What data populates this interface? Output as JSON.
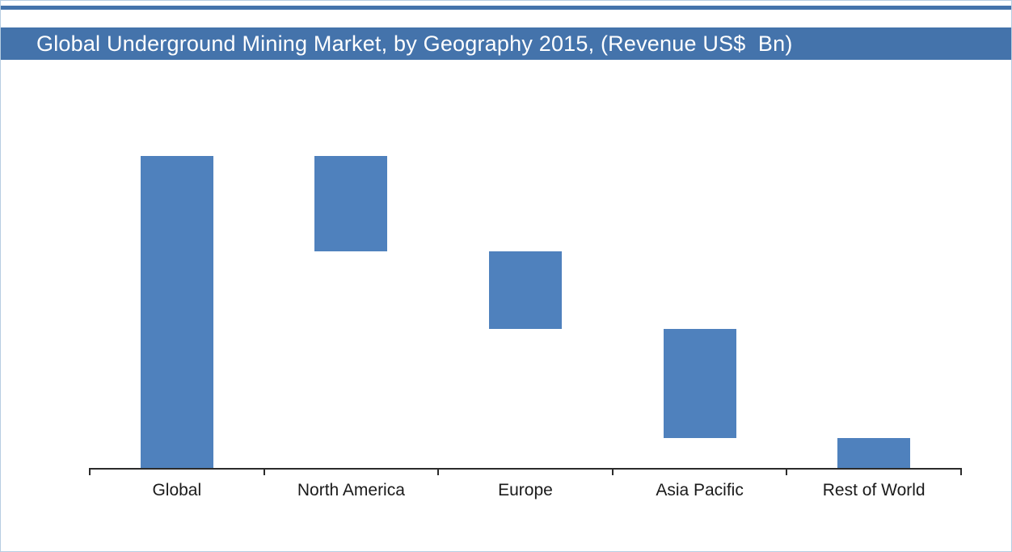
{
  "title": "Global Underground Mining Market, by Geography 2015, (Revenue US$  Bn)",
  "colors": {
    "header_bg": "#4473ab",
    "header_text": "#ffffff",
    "bar_fill": "#4f81bd",
    "axis": "#2b2b2b",
    "label_text": "#1a1a1a",
    "frame_border": "#b7cde2"
  },
  "chart_data": {
    "type": "bar",
    "subtype": "waterfall",
    "title": "Global Underground Mining Market, by Geography 2015, (Revenue US$ Bn)",
    "xlabel": "",
    "ylabel": "",
    "units": "Revenue US$ Bn (axis values not labeled; values relative, Global total = 100)",
    "categories": [
      "Global",
      "North America",
      "Europe",
      "Asia Pacific",
      "Rest of World"
    ],
    "bars": [
      {
        "category": "Global",
        "start": 0,
        "end": 100,
        "value": 100
      },
      {
        "category": "North America",
        "start": 69.5,
        "end": 100,
        "value": 30.5
      },
      {
        "category": "Europe",
        "start": 44.5,
        "end": 69.5,
        "value": 25
      },
      {
        "category": "Asia Pacific",
        "start": 9.5,
        "end": 44.5,
        "value": 35
      },
      {
        "category": "Rest of World",
        "start": 0,
        "end": 9.5,
        "value": 9.5
      }
    ],
    "ylim": [
      0,
      108
    ],
    "grid": false,
    "legend": "none",
    "y_axis_visible": false,
    "x_axis_visible": true
  }
}
